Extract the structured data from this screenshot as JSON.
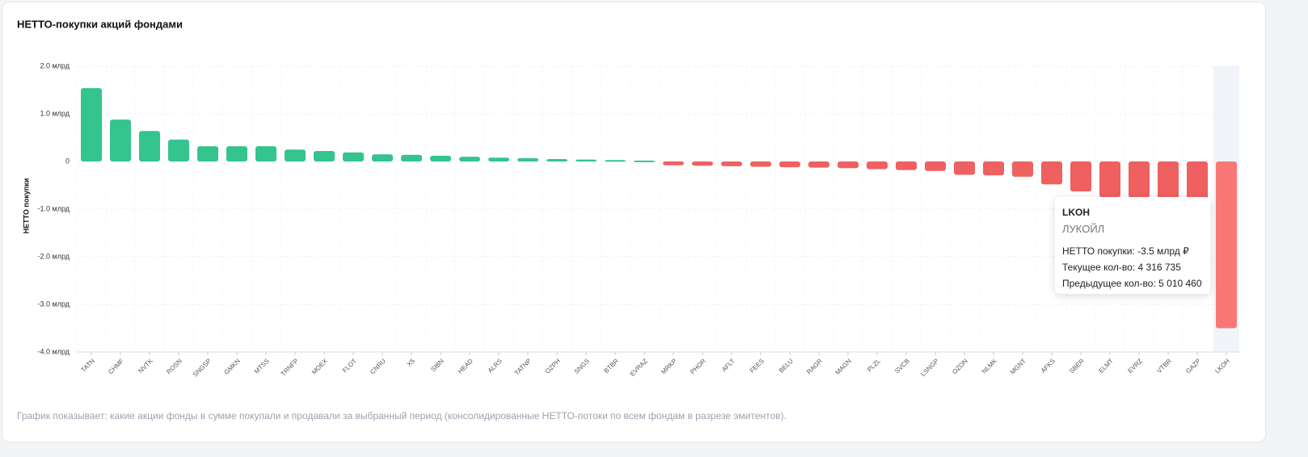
{
  "chart_data": {
    "type": "bar",
    "title": "НЕТТО-покупки акций фондами",
    "y_label": "НЕТТО покупки",
    "footnote": "График показывает: какие акции фонды в сумме покупали и продавали за выбранный период (консолидированные НЕТТО-потоки по всем фондам в разрезе эмитентов).",
    "categories": [
      "TATN",
      "CHMF",
      "NVTK",
      "ROSN",
      "SNGSP",
      "GMKN",
      "MTSS",
      "TRNFP",
      "MOEX",
      "FLOT",
      "CNRU",
      "X5",
      "SIBN",
      "HEAD",
      "ALRS",
      "TATNP",
      "OZPH",
      "SNGS",
      "BTBR",
      "EVRAZ",
      "MRKP",
      "PHOR",
      "AFLT",
      "FEES",
      "BELU",
      "RAGR",
      "MAGN",
      "PLZL",
      "SVCB",
      "LSNGP",
      "OZON",
      "NLMK",
      "MGNT",
      "AFKS",
      "SBER",
      "ELMT",
      "EVRZ",
      "VTBR",
      "GAZP",
      "LKOH"
    ],
    "values": [
      1.54,
      0.88,
      0.64,
      0.46,
      0.32,
      0.32,
      0.32,
      0.25,
      0.22,
      0.19,
      0.15,
      0.14,
      0.12,
      0.1,
      0.08,
      0.07,
      0.05,
      0.04,
      0.03,
      0.02,
      -0.08,
      -0.09,
      -0.1,
      -0.11,
      -0.12,
      -0.13,
      -0.14,
      -0.16,
      -0.18,
      -0.2,
      -0.28,
      -0.29,
      -0.32,
      -0.48,
      -0.63,
      -0.75,
      -0.76,
      -0.78,
      -0.8,
      -3.5
    ],
    "colors": {
      "positive": "#34c48e",
      "negative": "#ef6060",
      "highlight": "#f87878"
    },
    "ylim": [
      -4,
      2
    ],
    "yticks": [
      {
        "value": -4,
        "label": "-4.0 млрд"
      },
      {
        "value": -3,
        "label": "-3.0 млрд"
      },
      {
        "value": -2,
        "label": "-2.0 млрд"
      },
      {
        "value": -1,
        "label": "-1.0 млрд"
      },
      0,
      {
        "value": 1,
        "label": "1.0 млрд"
      },
      {
        "value": 2,
        "label": "2.0 млрд"
      }
    ],
    "grid": true,
    "tooltip": {
      "title": "LKOH",
      "subtitle": "ЛУКОЙЛ",
      "lines": [
        "НЕТТО покупки: -3.5 млрд ₽",
        "Текущее кол-во: 4 316 735",
        "Предыдущее кол-во: 5 010 460"
      ]
    }
  }
}
